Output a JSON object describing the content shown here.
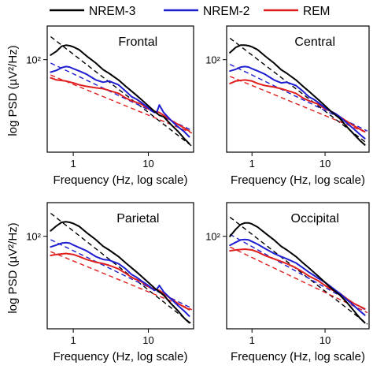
{
  "colors": {
    "NREM-3": "#000000",
    "NREM-2": "#1f1fd1",
    "REM": "#e01e1e"
  },
  "chart_data": {
    "type": "line",
    "xscale": "log",
    "yscale": "log",
    "grid": false,
    "legend": {
      "placement": "top",
      "entries": [
        {
          "name": "NREM-3",
          "color": "#000000"
        },
        {
          "name": "NREM-2",
          "color": "#1f1fd1"
        },
        {
          "name": "REM",
          "color": "#e01e1e"
        }
      ]
    },
    "xlabel": "Frequency (Hz, log scale)",
    "ylabel": "log PSD (µV²/Hz)",
    "xticks": [
      {
        "value": 1,
        "label": "1"
      },
      {
        "value": 10,
        "label": "10"
      }
    ],
    "yticks": [
      {
        "value": 100,
        "label": "10²"
      }
    ],
    "xlim": [
      0.45,
      40
    ],
    "ylim": [
      1.2,
      500
    ],
    "panels": [
      {
        "title": "Frontal",
        "series": [
          {
            "name": "NREM-3",
            "x": [
              0.5,
              0.6,
              0.7,
              0.8,
              0.9,
              1,
              1.2,
              1.5,
              2,
              2.5,
              3,
              4,
              5,
              6,
              7,
              8,
              10,
              12,
              14,
              16,
              20,
              25,
              30,
              35
            ],
            "y": [
              125,
              150,
              190,
              200,
              195,
              185,
              160,
              120,
              85,
              62,
              52,
              38,
              28,
              22,
              18,
              15,
              11,
              8.5,
              7,
              6.5,
              4.5,
              3.2,
              2.3,
              1.8
            ]
          },
          {
            "name": "NREM-2",
            "x": [
              0.5,
              0.6,
              0.7,
              0.8,
              0.9,
              1,
              1.2,
              1.5,
              2,
              2.5,
              3,
              4,
              5,
              6,
              7,
              8,
              10,
              12,
              13,
              14,
              16,
              20,
              25,
              30,
              35
            ],
            "y": [
              55,
              60,
              68,
              72,
              70,
              65,
              58,
              50,
              38,
              34,
              36,
              30,
              22,
              17,
              15,
              13,
              10,
              8,
              8.2,
              11.5,
              8,
              5.5,
              4,
              3.2,
              2.5
            ]
          },
          {
            "name": "REM",
            "x": [
              0.5,
              0.6,
              0.8,
              1,
              1.2,
              1.5,
              2,
              2.5,
              3,
              4,
              5,
              6,
              8,
              10,
              12,
              14,
              16,
              20,
              25,
              30,
              35
            ],
            "y": [
              42,
              38,
              36,
              33,
              30,
              28,
              26,
              25,
              23,
              20,
              16,
              14,
              12,
              9.5,
              8.5,
              8,
              7,
              5.5,
              4.5,
              3.8,
              3.3
            ]
          }
        ],
        "fits": [
          {
            "name": "NREM-3",
            "x": [
              0.5,
              38
            ],
            "y": [
              300,
              1.6
            ]
          },
          {
            "name": "NREM-2",
            "x": [
              0.5,
              38
            ],
            "y": [
              85,
              3.4
            ]
          },
          {
            "name": "REM",
            "x": [
              0.5,
              38
            ],
            "y": [
              48,
              3.0
            ]
          }
        ]
      },
      {
        "title": "Central",
        "series": [
          {
            "name": "NREM-3",
            "x": [
              0.5,
              0.6,
              0.7,
              0.8,
              0.9,
              1,
              1.2,
              1.5,
              2,
              2.5,
              3,
              4,
              5,
              6,
              7,
              8,
              10,
              12,
              14,
              16,
              20,
              25,
              30,
              35
            ],
            "y": [
              140,
              180,
              200,
              200,
              195,
              185,
              160,
              120,
              85,
              62,
              52,
              38,
              28,
              22,
              18,
              15,
              11,
              8.5,
              7,
              6,
              4,
              2.8,
              2.1,
              1.7
            ]
          },
          {
            "name": "NREM-2",
            "x": [
              0.5,
              0.6,
              0.7,
              0.8,
              0.9,
              1,
              1.2,
              1.5,
              2,
              2.5,
              3,
              4,
              5,
              6,
              7,
              8,
              10,
              12,
              14,
              16,
              20,
              25,
              30,
              35
            ],
            "y": [
              58,
              63,
              70,
              72,
              70,
              65,
              58,
              50,
              38,
              33,
              34,
              29,
              22,
              17,
              15,
              13,
              10,
              8.5,
              7.5,
              6.5,
              4.8,
              3.6,
              2.8,
              2.3
            ]
          },
          {
            "name": "REM",
            "x": [
              0.5,
              0.6,
              0.8,
              1,
              1.2,
              1.5,
              2,
              2.5,
              3,
              4,
              5,
              6,
              8,
              10,
              12,
              14,
              16,
              20,
              25,
              30,
              35
            ],
            "y": [
              32,
              36,
              38,
              36,
              32,
              29,
              27,
              25,
              23,
              20,
              16,
              14,
              12,
              9.5,
              8.5,
              7.5,
              6.5,
              5.2,
              4.2,
              3.6,
              3.2
            ]
          }
        ],
        "fits": [
          {
            "name": "NREM-3",
            "x": [
              0.5,
              38
            ],
            "y": [
              280,
              1.8
            ]
          },
          {
            "name": "NREM-2",
            "x": [
              0.5,
              38
            ],
            "y": [
              80,
              3.3
            ]
          },
          {
            "name": "REM",
            "x": [
              0.5,
              38
            ],
            "y": [
              45,
              3.0
            ]
          }
        ]
      },
      {
        "title": "Parietal",
        "series": [
          {
            "name": "NREM-3",
            "x": [
              0.5,
              0.6,
              0.7,
              0.8,
              0.9,
              1,
              1.2,
              1.5,
              2,
              2.5,
              3,
              4,
              5,
              6,
              7,
              8,
              10,
              12,
              14,
              16,
              20,
              25,
              30,
              35
            ],
            "y": [
              130,
              165,
              195,
              200,
              195,
              185,
              160,
              120,
              85,
              62,
              52,
              38,
              28,
              22,
              18,
              15,
              11,
              8.5,
              7,
              6,
              4,
              2.8,
              2,
              1.6
            ]
          },
          {
            "name": "NREM-2",
            "x": [
              0.5,
              0.6,
              0.7,
              0.8,
              0.9,
              1,
              1.2,
              1.5,
              2,
              2.5,
              3,
              4,
              5,
              6,
              7,
              8,
              10,
              12,
              13,
              14,
              16,
              20,
              25,
              30,
              35
            ],
            "y": [
              60,
              66,
              72,
              74,
              72,
              66,
              58,
              50,
              38,
              33,
              32,
              27,
              21,
              16,
              14,
              12,
              9.5,
              7.5,
              8,
              9.5,
              7,
              5,
              3.6,
              2.8,
              2.2
            ]
          },
          {
            "name": "REM",
            "x": [
              0.5,
              0.6,
              0.8,
              1,
              1.2,
              1.5,
              2,
              2.5,
              3,
              4,
              5,
              6,
              8,
              10,
              12,
              14,
              16,
              20,
              25,
              30,
              35
            ],
            "y": [
              40,
              42,
              44,
              42,
              38,
              33,
              29,
              27,
              25,
              21,
              17,
              14,
              11.5,
              9,
              8,
              7.5,
              6.5,
              5,
              4,
              3.4,
              3
            ]
          }
        ],
        "fits": [
          {
            "name": "NREM-3",
            "x": [
              0.5,
              38
            ],
            "y": [
              300,
              1.5
            ]
          },
          {
            "name": "NREM-2",
            "x": [
              0.5,
              38
            ],
            "y": [
              85,
              3.2
            ]
          },
          {
            "name": "REM",
            "x": [
              0.5,
              38
            ],
            "y": [
              48,
              3.0
            ]
          }
        ]
      },
      {
        "title": "Occipital",
        "series": [
          {
            "name": "NREM-3",
            "x": [
              0.5,
              0.6,
              0.7,
              0.8,
              0.9,
              1,
              1.2,
              1.5,
              2,
              2.5,
              3,
              4,
              5,
              6,
              7,
              8,
              10,
              12,
              14,
              16,
              20,
              25,
              30,
              35
            ],
            "y": [
              100,
              140,
              175,
              190,
              190,
              180,
              155,
              118,
              84,
              62,
              52,
              38,
              28,
              22,
              18,
              15,
              11,
              8.5,
              7,
              6,
              4.2,
              2.8,
              2,
              1.6
            ]
          },
          {
            "name": "NREM-2",
            "x": [
              0.5,
              0.6,
              0.7,
              0.8,
              0.9,
              1,
              1.2,
              1.5,
              2,
              2.5,
              3,
              4,
              5,
              6,
              7,
              8,
              10,
              12,
              14,
              16,
              20,
              25,
              30,
              35
            ],
            "y": [
              65,
              75,
              84,
              86,
              84,
              78,
              68,
              56,
              44,
              38,
              34,
              28,
              22,
              18,
              15.5,
              13.5,
              11,
              9,
              7.5,
              6.5,
              4.8,
              3.6,
              2.8,
              2.3
            ]
          },
          {
            "name": "REM",
            "x": [
              0.5,
              0.6,
              0.8,
              1,
              1.2,
              1.5,
              2,
              2.5,
              3,
              4,
              5,
              6,
              8,
              10,
              12,
              14,
              16,
              20,
              25,
              30,
              35
            ],
            "y": [
              50,
              52,
              54,
              52,
              47,
              40,
              34,
              30,
              27,
              22,
              18,
              15,
              12,
              9.5,
              8,
              7,
              6.5,
              5,
              4,
              3.5,
              3.1
            ]
          }
        ],
        "fits": [
          {
            "name": "NREM-3",
            "x": [
              0.5,
              38
            ],
            "y": [
              250,
              1.5
            ]
          },
          {
            "name": "NREM-2",
            "x": [
              0.5,
              38
            ],
            "y": [
              110,
              2.8
            ]
          },
          {
            "name": "REM",
            "x": [
              0.5,
              38
            ],
            "y": [
              60,
              2.6
            ]
          }
        ]
      }
    ]
  }
}
